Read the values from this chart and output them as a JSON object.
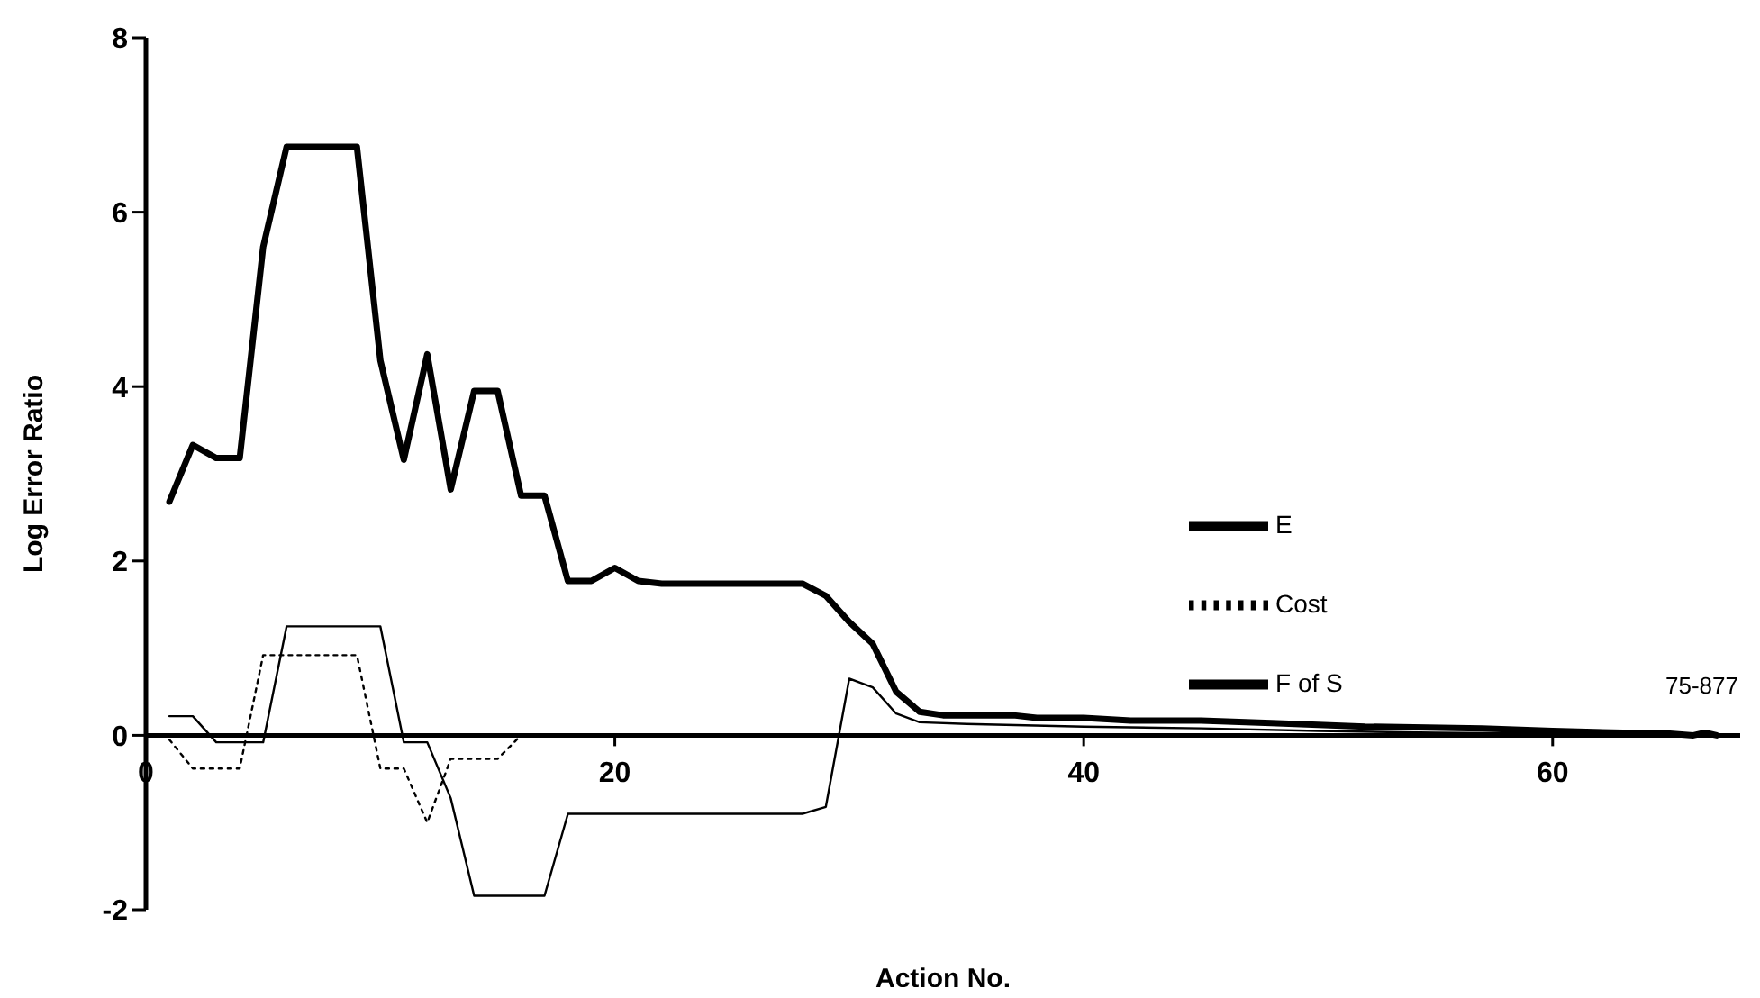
{
  "chart_data": {
    "type": "line",
    "xlabel": "Action No.",
    "ylabel": "Log Error Ratio",
    "xlim": [
      0,
      68
    ],
    "xticks": [
      0,
      20,
      40,
      60
    ],
    "ylim": [
      -2,
      8
    ],
    "yticks": [
      -2,
      0,
      2,
      4,
      6,
      8
    ],
    "grid": false,
    "legend": "right",
    "marker": "none",
    "annotations": [
      "75-877"
    ],
    "series": [
      {
        "name": "E",
        "color": "#000000",
        "line_style": "solid",
        "x": [
          1,
          2,
          3,
          4,
          5,
          6,
          7,
          8,
          9,
          10,
          11,
          12,
          13,
          14,
          15,
          16,
          17,
          18,
          19,
          20,
          21,
          22,
          25,
          28,
          29,
          30,
          31,
          32,
          33,
          34,
          37,
          38,
          40,
          42,
          45,
          48,
          52,
          57,
          60,
          63,
          65,
          66,
          66.5,
          67
        ],
        "values": [
          2.68,
          3.33,
          3.18,
          3.18,
          5.6,
          6.75,
          6.75,
          6.75,
          6.75,
          4.3,
          3.16,
          4.37,
          2.82,
          3.95,
          3.95,
          2.75,
          2.75,
          1.77,
          1.77,
          1.92,
          1.77,
          1.74,
          1.74,
          1.74,
          1.6,
          1.3,
          1.05,
          0.5,
          0.27,
          0.23,
          0.23,
          0.2,
          0.2,
          0.17,
          0.17,
          0.14,
          0.1,
          0.08,
          0.05,
          0.03,
          0.02,
          0,
          0.03,
          0
        ]
      },
      {
        "name": "Cost",
        "color": "#000000",
        "line_style": "dotted",
        "x": [
          1,
          2,
          3,
          4,
          5,
          6,
          7,
          8,
          9,
          10,
          11,
          12,
          13,
          14,
          15,
          16
        ],
        "values": [
          -0.05,
          -0.38,
          -0.38,
          -0.38,
          0.92,
          0.92,
          0.92,
          0.92,
          0.92,
          -0.38,
          -0.38,
          -1.0,
          -0.27,
          -0.27,
          -0.27,
          0
        ]
      },
      {
        "name": "F of S",
        "color": "#000000",
        "line_style": "solid",
        "x": [
          1,
          2,
          3,
          4,
          5,
          6,
          7,
          8,
          9,
          10,
          11,
          12,
          13,
          14,
          15,
          16,
          17,
          18,
          22,
          28,
          29,
          30,
          31,
          32,
          33,
          35,
          40,
          45,
          50,
          55,
          60,
          67
        ],
        "values": [
          0.22,
          0.22,
          -0.08,
          -0.08,
          -0.08,
          1.25,
          1.25,
          1.25,
          1.25,
          1.25,
          -0.08,
          -0.08,
          -0.72,
          -1.84,
          -1.84,
          -1.84,
          -1.84,
          -0.9,
          -0.9,
          -0.9,
          -0.82,
          0.65,
          0.55,
          0.25,
          0.15,
          0.13,
          0.1,
          0.08,
          0.05,
          0.03,
          0.02,
          0
        ]
      }
    ]
  }
}
